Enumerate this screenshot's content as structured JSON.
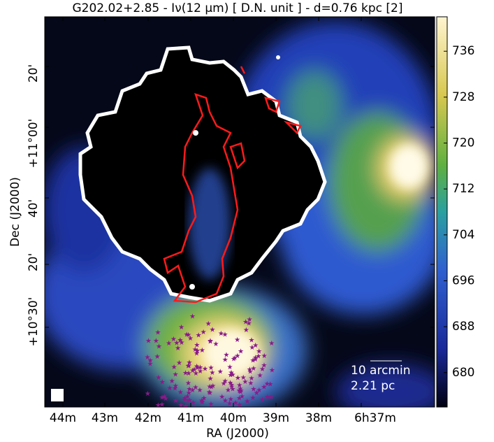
{
  "chart_data": {
    "type": "image",
    "title": "G202.02+2.85 - Iν(12 μm)  [ D.N. unit ]  -  d=0.76 kpc [2]",
    "xlabel": "RA (J2000)",
    "ylabel": "Dec (J2000)",
    "xticks": [
      "44m",
      "43m",
      "42m",
      "41m",
      "40m",
      "39m",
      "38m",
      "6h37m"
    ],
    "yticks": [
      "20'",
      "+11°00'",
      "40'",
      "20'",
      "+10°30'"
    ],
    "colorbar": {
      "lim": [
        674,
        742
      ],
      "ticks": [
        680,
        688,
        696,
        704,
        712,
        720,
        728,
        736
      ]
    },
    "annotations": [
      "10 arcmin",
      "2.21 pc"
    ]
  }
}
